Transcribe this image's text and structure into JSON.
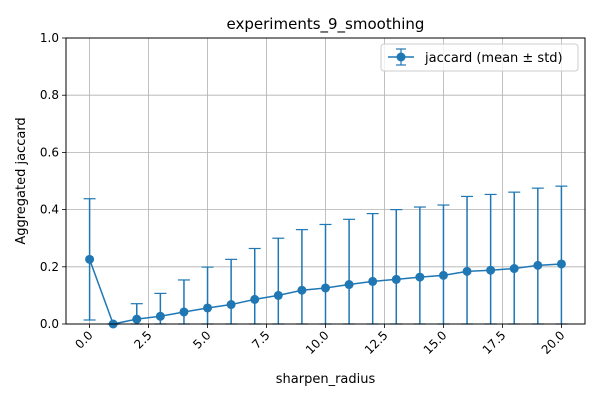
{
  "chart_data": {
    "type": "line",
    "title": "experiments_9_smoothing",
    "xlabel": "sharpen_radius",
    "ylabel": "Aggregated jaccard",
    "xlim": [
      -1.0,
      21.0
    ],
    "ylim": [
      0.0,
      1.0
    ],
    "xticks": [
      "0.0",
      "2.5",
      "5.0",
      "7.5",
      "10.0",
      "12.5",
      "15.0",
      "17.5",
      "20.0"
    ],
    "yticks": [
      "0.0",
      "0.2",
      "0.4",
      "0.6",
      "0.8",
      "1.0"
    ],
    "grid": true,
    "legend_position": "upper right",
    "series": [
      {
        "name": "jaccard (mean ± std)",
        "color": "#1f77b4",
        "x": [
          0,
          1,
          2,
          3,
          4,
          5,
          6,
          7,
          8,
          9,
          10,
          11,
          12,
          13,
          14,
          15,
          16,
          17,
          18,
          19,
          20
        ],
        "mean": [
          0.226,
          0.0,
          0.017,
          0.027,
          0.042,
          0.056,
          0.068,
          0.086,
          0.1,
          0.118,
          0.126,
          0.138,
          0.149,
          0.156,
          0.164,
          0.17,
          0.184,
          0.188,
          0.194,
          0.205,
          0.21
        ],
        "std": [
          0.212,
          0.0,
          0.054,
          0.08,
          0.112,
          0.143,
          0.158,
          0.178,
          0.2,
          0.212,
          0.222,
          0.228,
          0.237,
          0.244,
          0.245,
          0.246,
          0.262,
          0.265,
          0.267,
          0.27,
          0.272
        ]
      }
    ]
  }
}
